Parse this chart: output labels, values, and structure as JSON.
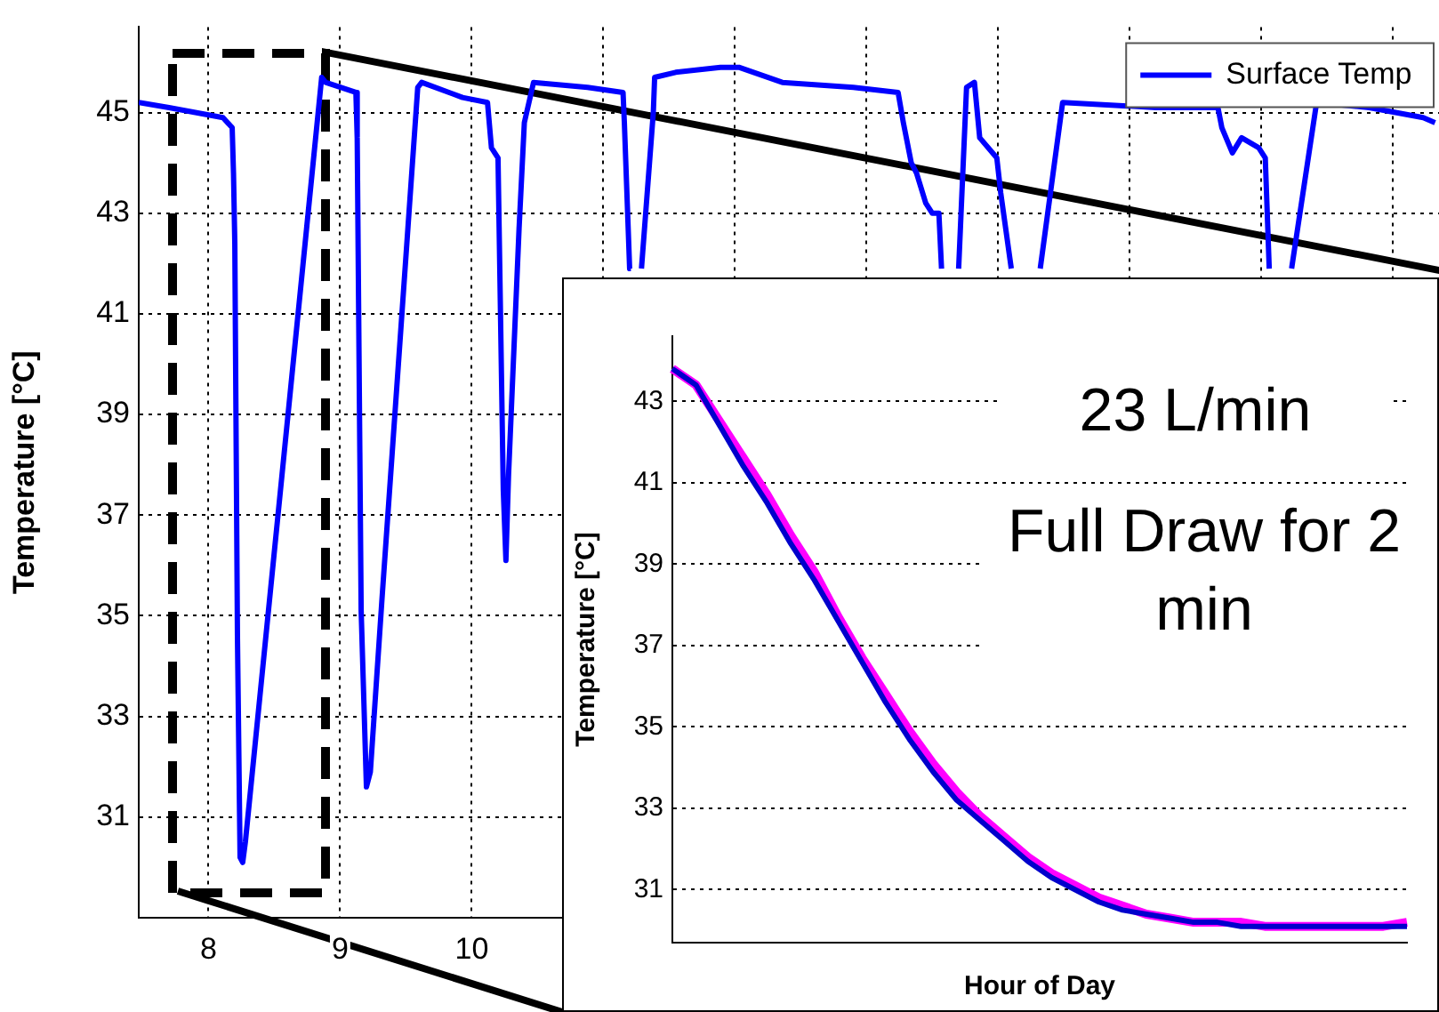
{
  "chart_data": [
    {
      "type": "line",
      "ylabel": "Temperature [°C]",
      "xlim": [
        7.47,
        17.35
      ],
      "xticks": [
        8,
        9,
        10,
        {
          "value": 11,
          "label": null
        },
        {
          "value": 12,
          "label": null
        },
        {
          "value": 13,
          "label": null
        },
        {
          "value": 14,
          "label": null
        },
        {
          "value": 15,
          "label": null
        },
        {
          "value": 16,
          "label": null
        },
        {
          "value": 17,
          "label": null
        }
      ],
      "ylim": [
        29,
        46.7
      ],
      "yticks": [
        31,
        33,
        35,
        37,
        39,
        41,
        43,
        45
      ],
      "grid": true,
      "legend": "top right",
      "x": [
        7.47,
        7.7,
        8.11,
        8.18,
        8.19,
        8.2,
        8.22,
        8.24,
        8.26,
        8.28,
        8.86,
        8.89,
        9.12,
        9.13,
        9.16,
        9.2,
        9.23,
        9.32,
        9.59,
        9.62,
        9.93,
        10.12,
        10.15,
        10.2,
        10.24,
        10.26,
        10.28,
        10.36,
        10.4,
        10.47,
        10.88,
        11.15,
        11.16,
        11.2,
        11.21,
        11.25,
        11.29,
        11.38,
        11.39,
        11.55,
        11.89,
        12.03,
        12.36,
        12.9,
        13.24,
        13.28,
        13.34,
        13.38,
        13.45,
        13.5,
        13.55,
        13.57,
        13.62,
        13.7,
        13.76,
        13.82,
        13.86,
        13.99,
        14.02,
        14.1,
        14.2,
        14.32,
        14.49,
        15.2,
        15.67,
        15.7,
        15.78,
        15.85,
        15.98,
        16.03,
        16.06,
        16.15,
        16.23,
        16.42,
        16.82,
        17.23,
        17.32
      ],
      "series": [
        {
          "name": "Surface Temp",
          "color": "#0000ff",
          "values": [
            45.2,
            45.1,
            44.9,
            44.7,
            43.8,
            42.4,
            34.6,
            30.2,
            30.1,
            30.5,
            45.7,
            45.6,
            45.4,
            44.5,
            35.1,
            31.6,
            31.9,
            35.4,
            45.5,
            45.6,
            45.3,
            45.2,
            44.3,
            44.1,
            37.5,
            36.1,
            37.8,
            42.7,
            44.8,
            45.6,
            45.5,
            45.4,
            44.8,
            41.9,
            41.9,
            null,
            41.9,
            45,
            45.7,
            45.8,
            45.9,
            45.9,
            45.6,
            45.5,
            45.4,
            44.8,
            44,
            43.8,
            43.2,
            43,
            43,
            41.9,
            null,
            41.9,
            45.5,
            45.6,
            44.5,
            44.1,
            43.4,
            41.9,
            null,
            41.9,
            45.2,
            45.1,
            45.1,
            44.7,
            44.2,
            44.5,
            44.3,
            44.1,
            41.9,
            null,
            41.9,
            45.2,
            45.1,
            44.9,
            44.8
          ]
        }
      ]
    },
    {
      "type": "line",
      "ylabel": "Temperature [°C]",
      "xlabel": "Hour of Day",
      "ylim": [
        29.7,
        44.6
      ],
      "yticks": [
        31,
        33,
        35,
        37,
        39,
        41,
        43
      ],
      "grid": "y",
      "tick_labels": "y",
      "annotations": [
        "23 L/min",
        "Full Draw for 2 min"
      ],
      "categories": [
        null,
        null,
        null,
        null,
        null,
        null,
        null,
        null,
        null,
        null,
        null,
        null,
        null,
        null,
        null,
        null,
        null,
        null,
        null,
        null,
        null,
        null,
        null,
        null,
        null,
        null,
        null,
        null,
        null,
        null,
        null,
        null
      ],
      "series": [
        {
          "color": "#0000cc",
          "values": [
            43.8,
            43.4,
            42.4,
            41.4,
            40.5,
            39.5,
            38.6,
            37.6,
            36.6,
            35.6,
            34.7,
            33.9,
            33.2,
            32.7,
            32.2,
            31.7,
            31.3,
            31,
            30.7,
            30.5,
            30.4,
            30.3,
            30.2,
            30.2,
            30.1,
            30.1,
            30.1,
            30.1,
            30.1,
            30.1,
            30.1,
            30.1
          ]
        },
        {
          "color": "#ff00ff",
          "values": [
            43.8,
            43.4,
            42.5,
            41.6,
            40.7,
            39.7,
            38.8,
            37.7,
            36.7,
            35.8,
            34.9,
            34.1,
            33.4,
            32.8,
            32.3,
            31.8,
            31.4,
            31.1,
            30.8,
            30.6,
            30.4,
            30.3,
            30.2,
            30.2,
            30.2,
            30.1,
            30.1,
            30.1,
            30.1,
            30.1,
            30.1,
            30.2
          ]
        }
      ]
    }
  ]
}
